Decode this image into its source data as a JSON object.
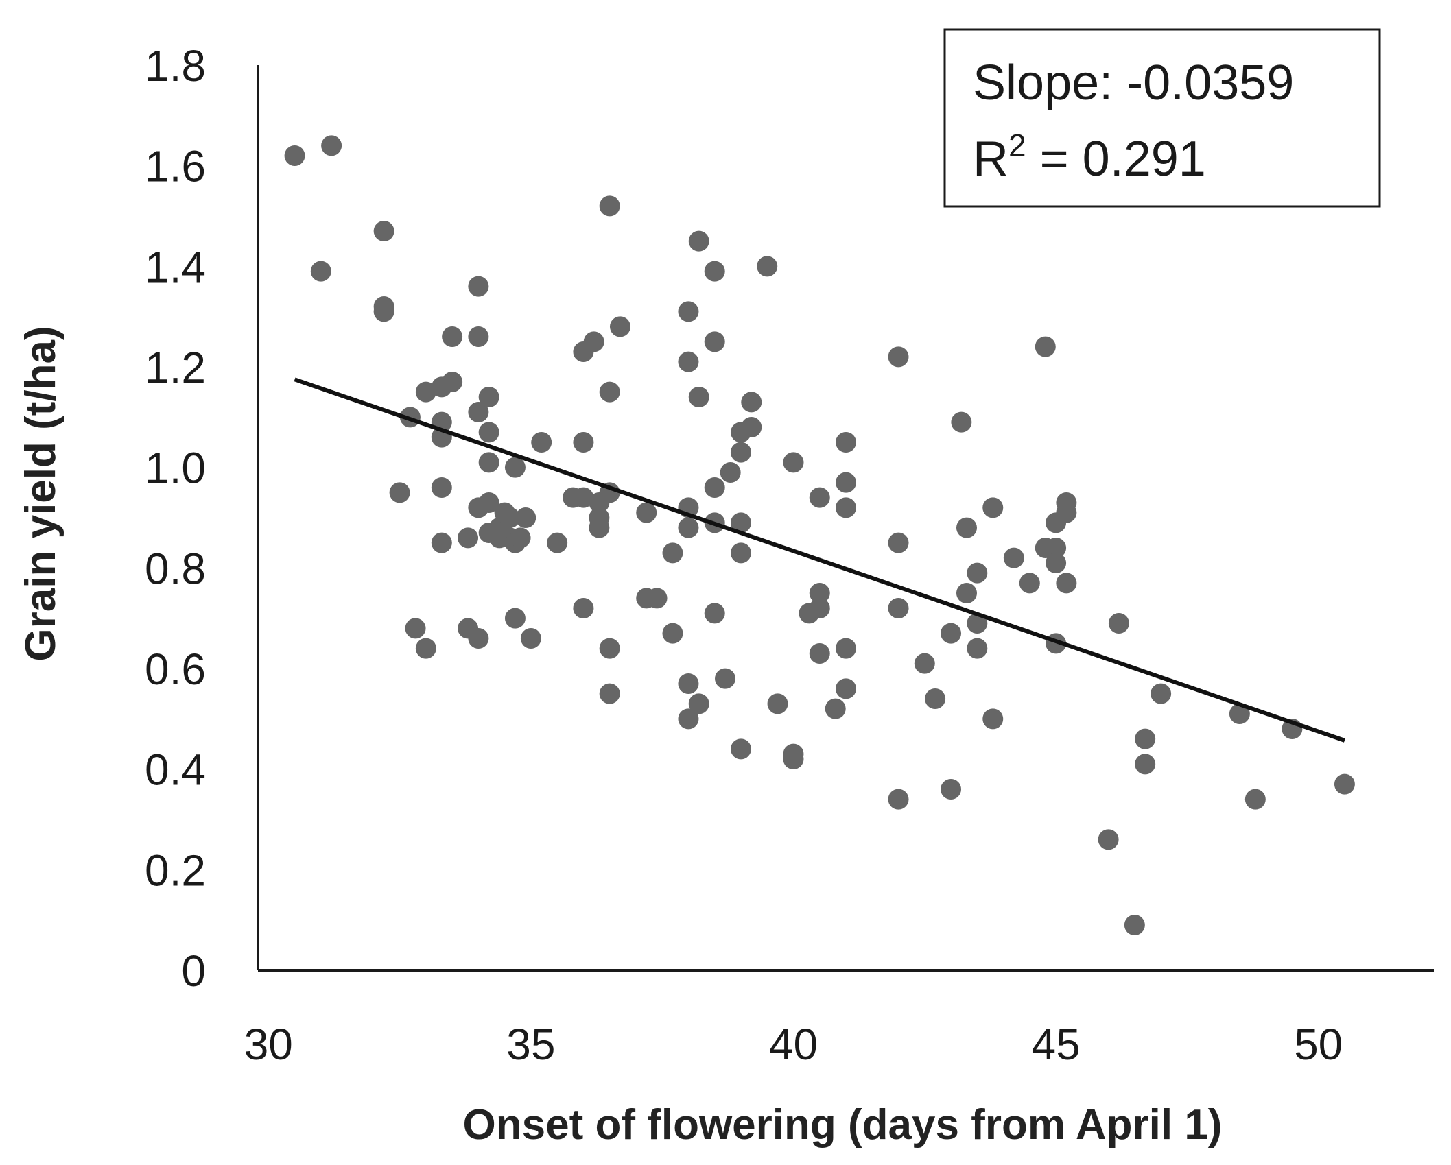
{
  "chart_data": {
    "type": "scatter",
    "title": "",
    "xlabel": "Onset of flowering (days from April 1)",
    "ylabel": "Grain yield (t/ha)",
    "xlim": [
      29.8,
      52.2
    ],
    "ylim": [
      0,
      1.8
    ],
    "x_ticks": [
      "30",
      "35",
      "40",
      "45",
      "50"
    ],
    "x_tick_values": [
      30,
      35,
      40,
      45,
      50
    ],
    "y_ticks": [
      "0",
      "0.2",
      "0.4",
      "0.6",
      "0.8",
      "1.0",
      "1.2",
      "1.4",
      "1.6",
      "1.8"
    ],
    "y_tick_values": [
      0,
      0.2,
      0.4,
      0.6,
      0.8,
      1.0,
      1.2,
      1.4,
      1.6,
      1.8
    ],
    "grid": false,
    "point_color": "#666666",
    "line_color": "#111111",
    "annotation": {
      "slope_text": "Slope: -0.0359",
      "r2_prefix": "R",
      "r2_sup": "2",
      "r2_suffix": " = 0.291"
    },
    "trendline": {
      "x": [
        30.5,
        50.5
      ],
      "y": [
        1.175,
        0.457
      ]
    },
    "points": [
      [
        30.5,
        1.62
      ],
      [
        31.2,
        1.64
      ],
      [
        31.0,
        1.39
      ],
      [
        32.2,
        1.47
      ],
      [
        32.2,
        1.31
      ],
      [
        32.2,
        1.32
      ],
      [
        32.5,
        0.95
      ],
      [
        32.7,
        1.1
      ],
      [
        32.8,
        0.68
      ],
      [
        33.0,
        1.15
      ],
      [
        33.0,
        0.64
      ],
      [
        33.3,
        1.09
      ],
      [
        33.3,
        1.16
      ],
      [
        33.3,
        1.06
      ],
      [
        33.3,
        0.96
      ],
      [
        33.3,
        0.85
      ],
      [
        33.5,
        1.26
      ],
      [
        33.5,
        1.17
      ],
      [
        33.8,
        0.86
      ],
      [
        33.8,
        0.68
      ],
      [
        34.0,
        1.36
      ],
      [
        34.0,
        1.26
      ],
      [
        34.0,
        1.11
      ],
      [
        34.0,
        0.92
      ],
      [
        34.0,
        0.66
      ],
      [
        34.2,
        1.14
      ],
      [
        34.2,
        1.07
      ],
      [
        34.2,
        1.01
      ],
      [
        34.2,
        0.93
      ],
      [
        34.2,
        0.87
      ],
      [
        34.4,
        0.86
      ],
      [
        34.4,
        0.88
      ],
      [
        34.5,
        0.91
      ],
      [
        34.6,
        0.9
      ],
      [
        34.6,
        0.86
      ],
      [
        34.7,
        0.85
      ],
      [
        34.7,
        1.0
      ],
      [
        34.8,
        0.86
      ],
      [
        34.7,
        0.7
      ],
      [
        34.9,
        0.9
      ],
      [
        35.0,
        0.66
      ],
      [
        35.2,
        1.05
      ],
      [
        35.5,
        0.85
      ],
      [
        35.8,
        0.94
      ],
      [
        36.0,
        0.94
      ],
      [
        36.0,
        0.72
      ],
      [
        36.0,
        1.05
      ],
      [
        36.0,
        1.23
      ],
      [
        36.2,
        1.25
      ],
      [
        36.3,
        0.93
      ],
      [
        36.3,
        0.88
      ],
      [
        36.3,
        0.9
      ],
      [
        36.5,
        1.52
      ],
      [
        36.5,
        1.15
      ],
      [
        36.5,
        0.95
      ],
      [
        36.5,
        0.64
      ],
      [
        36.5,
        0.55
      ],
      [
        36.7,
        1.28
      ],
      [
        37.2,
        0.91
      ],
      [
        37.2,
        0.74
      ],
      [
        37.4,
        0.74
      ],
      [
        37.7,
        0.83
      ],
      [
        37.7,
        0.67
      ],
      [
        38.0,
        1.31
      ],
      [
        38.0,
        1.21
      ],
      [
        38.0,
        0.92
      ],
      [
        38.0,
        0.88
      ],
      [
        38.0,
        0.57
      ],
      [
        38.0,
        0.5
      ],
      [
        38.2,
        1.45
      ],
      [
        38.2,
        1.14
      ],
      [
        38.2,
        0.53
      ],
      [
        38.5,
        1.39
      ],
      [
        38.5,
        1.25
      ],
      [
        38.5,
        0.96
      ],
      [
        38.5,
        0.89
      ],
      [
        38.5,
        0.71
      ],
      [
        38.8,
        0.99
      ],
      [
        38.7,
        0.58
      ],
      [
        39.0,
        1.07
      ],
      [
        39.0,
        1.03
      ],
      [
        39.0,
        0.89
      ],
      [
        39.0,
        0.83
      ],
      [
        39.0,
        0.44
      ],
      [
        39.2,
        1.13
      ],
      [
        39.2,
        1.08
      ],
      [
        39.5,
        1.4
      ],
      [
        39.7,
        0.53
      ],
      [
        40.0,
        1.01
      ],
      [
        40.0,
        0.43
      ],
      [
        40.0,
        0.42
      ],
      [
        40.3,
        0.71
      ],
      [
        40.5,
        0.94
      ],
      [
        40.5,
        0.75
      ],
      [
        40.5,
        0.72
      ],
      [
        40.5,
        0.63
      ],
      [
        40.8,
        0.52
      ],
      [
        41.0,
        1.05
      ],
      [
        41.0,
        0.97
      ],
      [
        41.0,
        0.92
      ],
      [
        41.0,
        0.64
      ],
      [
        41.0,
        0.56
      ],
      [
        42.0,
        1.22
      ],
      [
        42.0,
        0.85
      ],
      [
        42.0,
        0.72
      ],
      [
        42.0,
        0.34
      ],
      [
        42.5,
        0.61
      ],
      [
        42.7,
        0.54
      ],
      [
        43.0,
        0.67
      ],
      [
        43.0,
        0.36
      ],
      [
        43.2,
        1.09
      ],
      [
        43.3,
        0.88
      ],
      [
        43.3,
        0.75
      ],
      [
        43.5,
        0.79
      ],
      [
        43.5,
        0.69
      ],
      [
        43.5,
        0.64
      ],
      [
        43.8,
        0.92
      ],
      [
        43.8,
        0.5
      ],
      [
        44.2,
        0.82
      ],
      [
        44.5,
        0.77
      ],
      [
        44.8,
        1.24
      ],
      [
        44.8,
        0.84
      ],
      [
        45.0,
        0.89
      ],
      [
        45.0,
        0.84
      ],
      [
        45.0,
        0.81
      ],
      [
        45.0,
        0.65
      ],
      [
        45.2,
        0.93
      ],
      [
        45.2,
        0.91
      ],
      [
        45.2,
        0.77
      ],
      [
        46.0,
        0.26
      ],
      [
        46.2,
        0.69
      ],
      [
        46.5,
        0.09
      ],
      [
        46.7,
        0.46
      ],
      [
        46.7,
        0.41
      ],
      [
        47.0,
        0.55
      ],
      [
        48.5,
        0.51
      ],
      [
        48.8,
        0.34
      ],
      [
        49.5,
        0.48
      ],
      [
        50.5,
        0.37
      ]
    ]
  }
}
